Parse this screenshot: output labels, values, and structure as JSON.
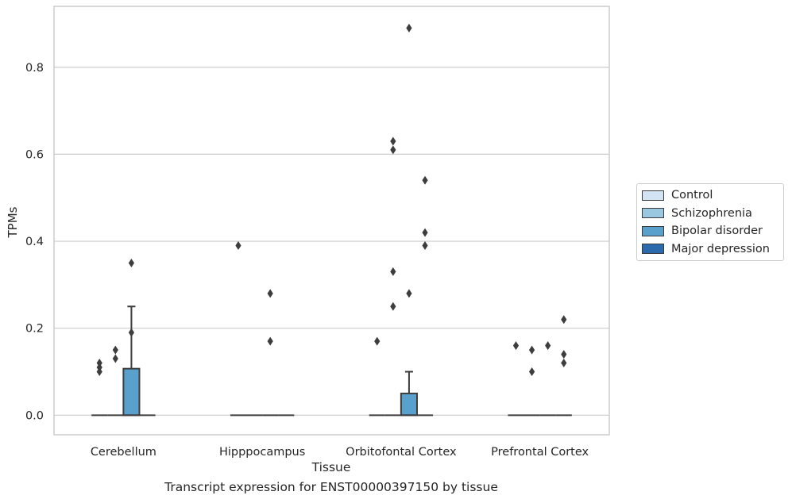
{
  "chart_data": {
    "type": "box",
    "title": "",
    "caption": "Transcript expression for ENST00000397150 by tissue",
    "xlabel": "Tissue",
    "ylabel": "TPMs",
    "ylim": [
      -0.045,
      0.94
    ],
    "yticks": [
      0.0,
      0.2,
      0.4,
      0.6,
      0.8
    ],
    "ytick_labels": [
      "0.0",
      "0.2",
      "0.4",
      "0.6",
      "0.8"
    ],
    "grid": true,
    "legend_position": "right",
    "categories": [
      "Cerebellum",
      "Hipppocampus",
      "Orbitofontal Cortex",
      "Prefrontal Cortex"
    ],
    "series": [
      {
        "name": "Control",
        "color": "#d2e3f3"
      },
      {
        "name": "Schizophrenia",
        "color": "#9ac8e0"
      },
      {
        "name": "Bipolar disorder",
        "color": "#5aa0cd"
      },
      {
        "name": "Major depression",
        "color": "#2a6aad"
      }
    ],
    "boxes": [
      {
        "category": 0,
        "series": 0,
        "q1": 0,
        "median": 0,
        "q3": 0,
        "whislo": 0,
        "whishi": 0,
        "outliers": [
          0.12,
          0.11,
          0.1
        ]
      },
      {
        "category": 0,
        "series": 1,
        "q1": 0,
        "median": 0,
        "q3": 0,
        "whislo": 0,
        "whishi": 0,
        "outliers": [
          0.15,
          0.13
        ]
      },
      {
        "category": 0,
        "series": 2,
        "q1": 0,
        "median": 0,
        "q3": 0.107,
        "whislo": 0,
        "whishi": 0.25,
        "outliers": [
          0.35,
          0.19
        ]
      },
      {
        "category": 0,
        "series": 3,
        "q1": 0,
        "median": 0,
        "q3": 0,
        "whislo": 0,
        "whishi": 0,
        "outliers": []
      },
      {
        "category": 1,
        "series": 0,
        "q1": 0,
        "median": 0,
        "q3": 0,
        "whislo": 0,
        "whishi": 0,
        "outliers": [
          0.39
        ]
      },
      {
        "category": 1,
        "series": 1,
        "q1": 0,
        "median": 0,
        "q3": 0,
        "whislo": 0,
        "whishi": 0,
        "outliers": []
      },
      {
        "category": 1,
        "series": 2,
        "q1": 0,
        "median": 0,
        "q3": 0,
        "whislo": 0,
        "whishi": 0,
        "outliers": [
          0.28,
          0.17
        ]
      },
      {
        "category": 1,
        "series": 3,
        "q1": 0,
        "median": 0,
        "q3": 0,
        "whislo": 0,
        "whishi": 0,
        "outliers": []
      },
      {
        "category": 2,
        "series": 0,
        "q1": 0,
        "median": 0,
        "q3": 0,
        "whislo": 0,
        "whishi": 0,
        "outliers": [
          0.17
        ]
      },
      {
        "category": 2,
        "series": 1,
        "q1": 0,
        "median": 0,
        "q3": 0,
        "whislo": 0,
        "whishi": 0,
        "outliers": [
          0.63,
          0.61,
          0.33,
          0.25
        ]
      },
      {
        "category": 2,
        "series": 2,
        "q1": 0,
        "median": 0,
        "q3": 0.05,
        "whislo": 0,
        "whishi": 0.1,
        "outliers": [
          0.89,
          0.28
        ]
      },
      {
        "category": 2,
        "series": 3,
        "q1": 0,
        "median": 0,
        "q3": 0,
        "whislo": 0,
        "whishi": 0,
        "outliers": [
          0.54,
          0.42,
          0.39
        ]
      },
      {
        "category": 3,
        "series": 0,
        "q1": 0,
        "median": 0,
        "q3": 0,
        "whislo": 0,
        "whishi": 0,
        "outliers": [
          0.16
        ]
      },
      {
        "category": 3,
        "series": 1,
        "q1": 0,
        "median": 0,
        "q3": 0,
        "whislo": 0,
        "whishi": 0,
        "outliers": [
          0.15,
          0.1
        ]
      },
      {
        "category": 3,
        "series": 2,
        "q1": 0,
        "median": 0,
        "q3": 0,
        "whislo": 0,
        "whishi": 0,
        "outliers": [
          0.16
        ]
      },
      {
        "category": 3,
        "series": 3,
        "q1": 0,
        "median": 0,
        "q3": 0,
        "whislo": 0,
        "whishi": 0,
        "outliers": [
          0.22,
          0.14,
          0.12
        ]
      }
    ]
  }
}
